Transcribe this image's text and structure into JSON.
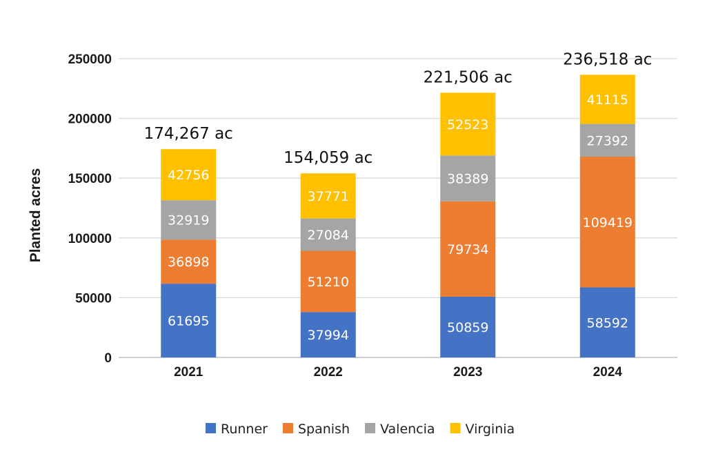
{
  "chart_data": {
    "type": "bar",
    "stacked": true,
    "title": "",
    "xlabel": "",
    "ylabel": "Planted acres",
    "ylim": [
      0,
      250000
    ],
    "yticks": [
      0,
      50000,
      100000,
      150000,
      200000,
      250000
    ],
    "categories": [
      "2021",
      "2022",
      "2023",
      "2024"
    ],
    "series": [
      {
        "name": "Runner",
        "color": "#4472c4",
        "values": [
          61695,
          37994,
          50859,
          58592
        ]
      },
      {
        "name": "Spanish",
        "color": "#ed7d31",
        "values": [
          36898,
          51210,
          79734,
          109419
        ]
      },
      {
        "name": "Valencia",
        "color": "#a5a5a5",
        "values": [
          32919,
          27084,
          38389,
          27392
        ]
      },
      {
        "name": "Virginia",
        "color": "#ffc000",
        "values": [
          42756,
          37771,
          52523,
          41115
        ]
      }
    ],
    "totals": [
      "174,267 ac",
      "154,059 ac",
      "221,506 ac",
      "236,518 ac"
    ],
    "grid": true,
    "legend_position": "bottom"
  }
}
